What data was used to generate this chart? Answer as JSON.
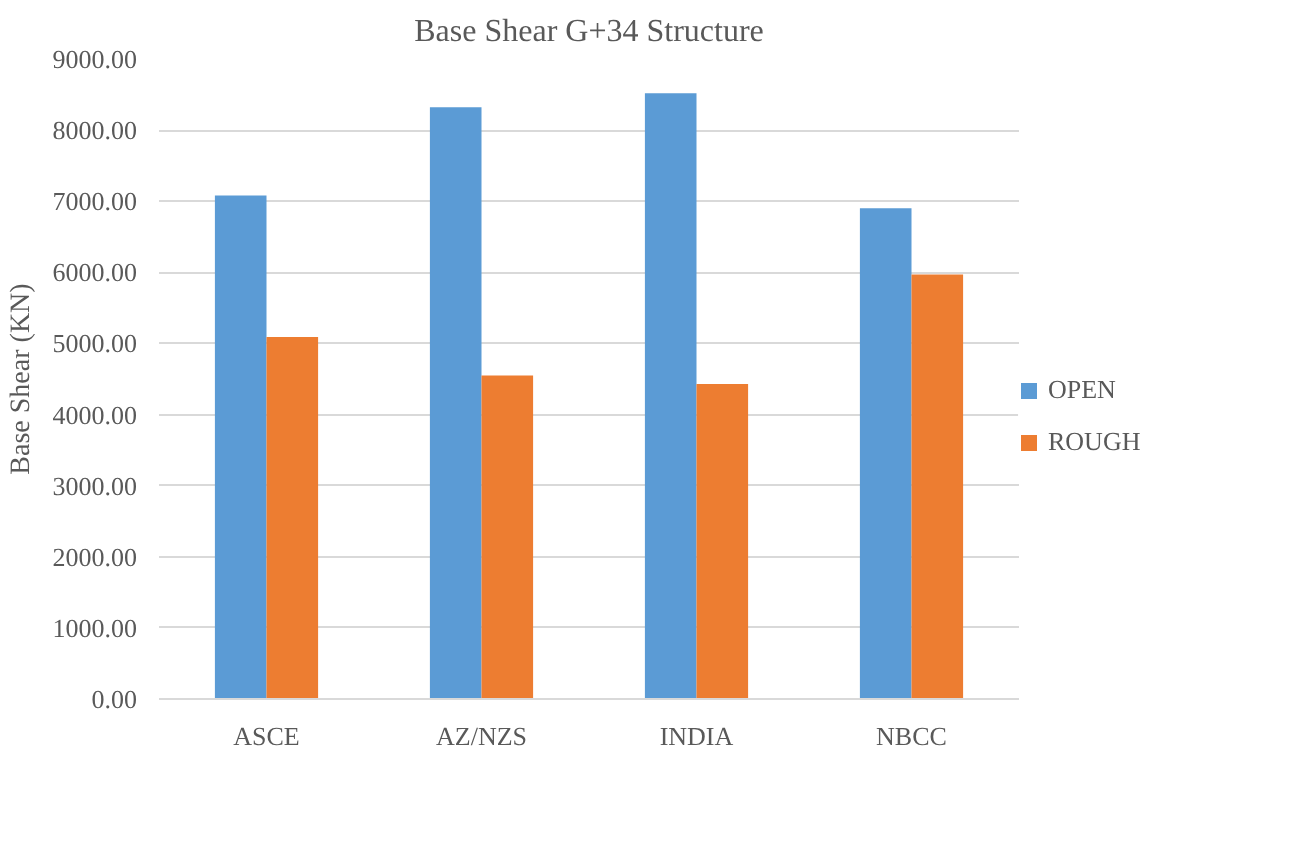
{
  "chart_data": {
    "type": "bar",
    "title": "Base Shear G+34 Structure",
    "ylabel": "Base Shear (KN)",
    "categories": [
      "ASCE",
      "AZ/NZS",
      "INDIA",
      "NBCC"
    ],
    "series": [
      {
        "name": "OPEN",
        "color": "#5b9bd5",
        "values": [
          7080,
          8320,
          8520,
          6900
        ]
      },
      {
        "name": "ROUGH",
        "color": "#ed7d31",
        "values": [
          5090,
          4550,
          4430,
          5970
        ]
      }
    ],
    "ylim": [
      0,
      9000
    ],
    "yticks": [
      {
        "value": 0,
        "label": "0.00"
      },
      {
        "value": 1000,
        "label": "1000.00"
      },
      {
        "value": 2000,
        "label": "2000.00"
      },
      {
        "value": 3000,
        "label": "3000.00"
      },
      {
        "value": 4000,
        "label": "4000.00"
      },
      {
        "value": 5000,
        "label": "5000.00"
      },
      {
        "value": 6000,
        "label": "6000.00"
      },
      {
        "value": 7000,
        "label": "7000.00"
      },
      {
        "value": 8000,
        "label": "8000.00"
      },
      {
        "value": 9000,
        "label": "9000.00"
      }
    ],
    "grid": "y",
    "legend": "right"
  }
}
